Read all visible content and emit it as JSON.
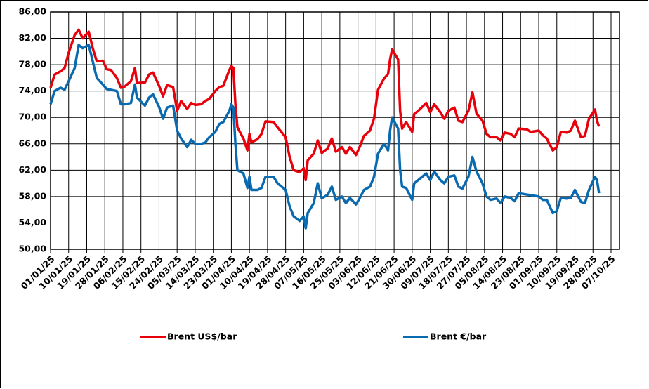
{
  "chart_data": {
    "type": "line",
    "x": [
      "01/01/25",
      "03/01/25",
      "06/01/25",
      "08/01/25",
      "10/01/25",
      "13/01/25",
      "15/01/25",
      "17/01/25",
      "20/01/25",
      "22/01/25",
      "24/01/25",
      "27/01/25",
      "29/01/25",
      "31/01/25",
      "03/02/25",
      "05/02/25",
      "07/02/25",
      "10/02/25",
      "12/02/25",
      "13/02/25",
      "17/02/25",
      "19/02/25",
      "21/02/25",
      "24/02/25",
      "26/02/25",
      "28/02/25",
      "03/03/25",
      "05/03/25",
      "07/03/25",
      "10/03/25",
      "12/03/25",
      "14/03/25",
      "17/03/25",
      "19/03/25",
      "21/03/25",
      "24/03/25",
      "26/03/25",
      "28/03/25",
      "31/03/25",
      "01/04/25",
      "02/04/25",
      "03/04/25",
      "04/04/25",
      "07/04/25",
      "09/04/25",
      "10/04/25",
      "11/04/25",
      "14/04/25",
      "16/04/25",
      "18/04/25",
      "22/04/25",
      "24/04/25",
      "28/04/25",
      "30/04/25",
      "02/05/25",
      "05/05/25",
      "07/05/25",
      "08/05/25",
      "09/05/25",
      "12/05/25",
      "14/05/25",
      "16/05/25",
      "19/05/25",
      "21/05/25",
      "23/05/25",
      "26/05/25",
      "28/05/25",
      "30/05/25",
      "02/06/25",
      "04/06/25",
      "06/06/25",
      "09/06/25",
      "11/06/25",
      "13/06/25",
      "16/06/25",
      "18/06/25",
      "19/06/25",
      "20/06/25",
      "23/06/25",
      "24/06/25",
      "25/06/25",
      "27/06/25",
      "30/06/25",
      "01/07/25",
      "03/07/25",
      "07/07/25",
      "09/07/25",
      "11/07/25",
      "14/07/25",
      "16/07/25",
      "18/07/25",
      "21/07/25",
      "23/07/25",
      "25/07/25",
      "28/07/25",
      "30/07/25",
      "01/08/25",
      "04/08/25",
      "06/08/25",
      "08/08/25",
      "11/08/25",
      "13/08/25",
      "15/08/25",
      "18/08/25",
      "20/08/25",
      "22/08/25",
      "26/08/25",
      "28/08/25",
      "01/09/25",
      "03/09/25",
      "05/09/25",
      "08/09/25",
      "10/09/25",
      "12/09/25",
      "15/09/25",
      "17/09/25",
      "19/09/25",
      "22/09/25",
      "24/09/25",
      "26/09/25",
      "29/09/25",
      "30/09/25",
      "01/10/25"
    ],
    "series": [
      {
        "name": "Brent US$/bar",
        "color": "#e8000b",
        "values": [
          74.5,
          76.5,
          77,
          77.5,
          79.8,
          82.5,
          83.3,
          82,
          83,
          80.5,
          78.5,
          78.6,
          77.3,
          77.2,
          76,
          74.5,
          74.7,
          75.5,
          77.5,
          75.2,
          75.3,
          76.5,
          76.8,
          74.8,
          73.2,
          74.9,
          74.6,
          71,
          72.5,
          71.3,
          72.2,
          71.9,
          72,
          72.5,
          72.8,
          74,
          74.6,
          74.8,
          77.2,
          77.8,
          77.5,
          72,
          68.5,
          66.8,
          65,
          67.5,
          66.2,
          66.7,
          67.5,
          69.4,
          69.3,
          68.5,
          67,
          64,
          62,
          61.7,
          62.3,
          60.5,
          63.5,
          64.5,
          66.5,
          64.6,
          65.3,
          66.8,
          64.8,
          65.5,
          64.5,
          65.5,
          64.3,
          65.6,
          67.2,
          68,
          69.8,
          74.2,
          75.9,
          76.6,
          78.8,
          80.3,
          78.8,
          71,
          68.3,
          69.3,
          67.8,
          70.5,
          71,
          72.2,
          70.8,
          72,
          70.8,
          69.8,
          71,
          71.5,
          69.5,
          69.3,
          71,
          73.8,
          70.6,
          69.5,
          67.5,
          67,
          67,
          66.5,
          67.7,
          67.5,
          67,
          68.3,
          68.2,
          67.8,
          68,
          67.3,
          66.8,
          65,
          65.5,
          67.8,
          67.7,
          68,
          69.5,
          67,
          67.2,
          69.8,
          71.2,
          69.5,
          68.6
        ]
      },
      {
        "name": "Brent €/bar",
        "color": "#0a6ab0",
        "values": [
          72,
          74,
          74.5,
          74.2,
          75.5,
          77.5,
          81,
          80.5,
          81,
          78.5,
          76,
          75,
          74.3,
          74.2,
          74,
          72,
          72,
          72.2,
          75,
          73,
          71.8,
          73,
          73.5,
          71.6,
          69.8,
          71.5,
          71.8,
          68,
          66.8,
          65.5,
          66.6,
          66,
          66,
          66.2,
          67,
          67.8,
          69,
          69.3,
          71,
          72,
          71.5,
          66,
          62,
          61.5,
          59.3,
          61,
          59,
          59,
          59.3,
          61,
          61,
          60,
          59,
          56.5,
          55,
          54.3,
          55,
          53.2,
          55.5,
          57,
          60,
          57.7,
          58.3,
          59.5,
          57.5,
          58,
          57,
          57.8,
          56.8,
          57.8,
          59,
          59.5,
          61,
          64.5,
          66,
          65,
          68,
          70,
          68.3,
          62,
          59.5,
          59.3,
          57.5,
          60,
          60.5,
          61.5,
          60.5,
          61.8,
          60.5,
          60,
          61,
          61.2,
          59.5,
          59.2,
          61,
          64,
          61.8,
          60,
          58,
          57.5,
          57.7,
          57,
          58,
          57.8,
          57.3,
          58.5,
          58.3,
          58.2,
          58,
          57.5,
          57.5,
          55.5,
          55.8,
          57.8,
          57.7,
          57.8,
          59,
          57.2,
          57,
          59,
          61,
          60.5,
          58.5
        ]
      }
    ],
    "xlim": [
      "01/01/25",
      "07/10/25"
    ],
    "xticks": [
      "01/01/25",
      "10/01/25",
      "19/01/25",
      "28/01/25",
      "06/02/25",
      "15/02/25",
      "24/02/25",
      "05/03/25",
      "14/03/25",
      "23/03/25",
      "01/04/25",
      "10/04/25",
      "19/04/25",
      "28/04/25",
      "07/05/25",
      "16/05/25",
      "25/05/25",
      "03/06/25",
      "12/06/25",
      "21/06/25",
      "30/06/25",
      "09/07/25",
      "18/07/25",
      "27/07/25",
      "05/08/25",
      "14/08/25",
      "23/08/25",
      "01/09/25",
      "10/09/25",
      "19/09/25",
      "28/09/25",
      "07/10/25"
    ],
    "ylim": [
      50,
      86
    ],
    "yticks": [
      {
        "value": 50,
        "label": "50,00"
      },
      {
        "value": 54,
        "label": "54,00"
      },
      {
        "value": 58,
        "label": "58,00"
      },
      {
        "value": 62,
        "label": "62,00"
      },
      {
        "value": 66,
        "label": "66,00"
      },
      {
        "value": 70,
        "label": "70,00"
      },
      {
        "value": 74,
        "label": "74,00"
      },
      {
        "value": 78,
        "label": "78,00"
      },
      {
        "value": 82,
        "label": "82,00"
      },
      {
        "value": 86,
        "label": "86,00"
      }
    ],
    "grid": true
  }
}
